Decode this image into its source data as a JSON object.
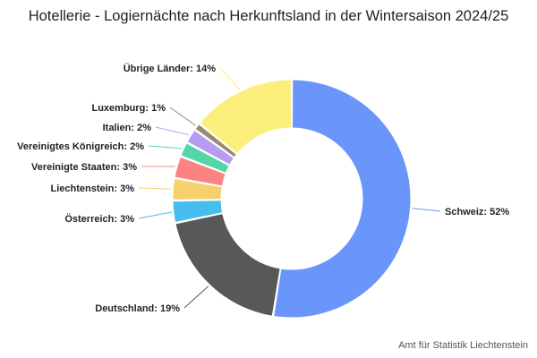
{
  "chart_data": {
    "type": "pie",
    "title": "Hotellerie - Logiernächte nach Herkunftsland in der Wintersaison 2024/25",
    "unit": "%",
    "slices": [
      {
        "label": "Schweiz",
        "value": 52,
        "color": "#6A96FB"
      },
      {
        "label": "Deutschland",
        "value": 19,
        "color": "#585858"
      },
      {
        "label": "Österreich",
        "value": 3,
        "color": "#45BDEF"
      },
      {
        "label": "Liechtenstein",
        "value": 3,
        "color": "#F6D06D"
      },
      {
        "label": "Vereinigte Staaten",
        "value": 3,
        "color": "#FC8383"
      },
      {
        "label": "Vereinigtes Königreich",
        "value": 2,
        "color": "#54D6A9"
      },
      {
        "label": "Italien",
        "value": 2,
        "color": "#B69CF0"
      },
      {
        "label": "Luxemburg",
        "value": 1,
        "color": "#9C8774"
      },
      {
        "label": "Übrige Länder",
        "value": 14,
        "color": "#FCEE7B"
      }
    ]
  },
  "source": "Amt für Statistik Liechtenstein"
}
